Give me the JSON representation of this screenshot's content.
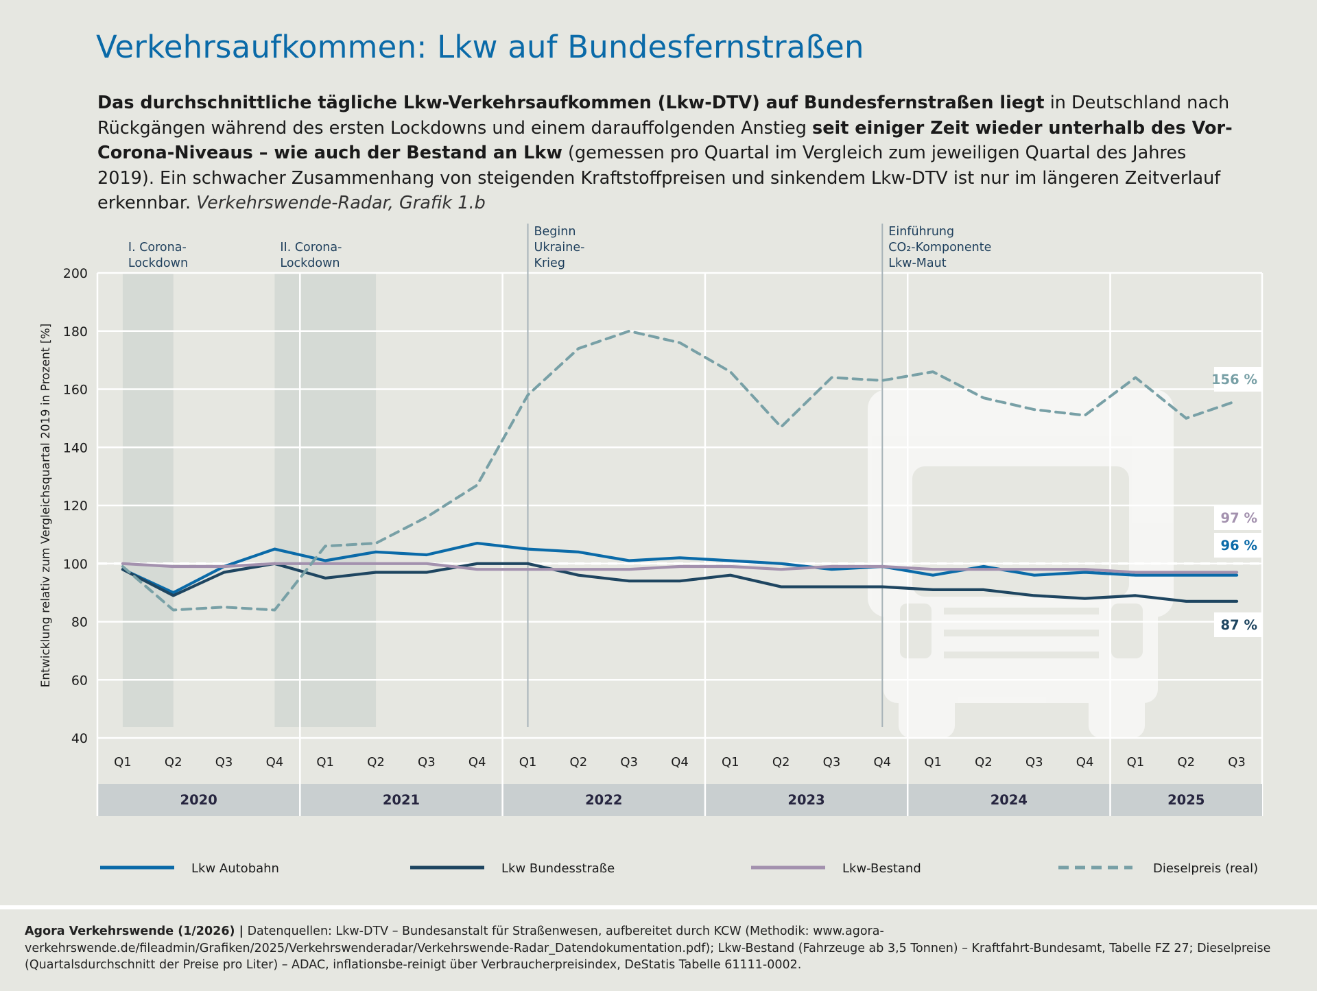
{
  "title": "Verkehrsaufkommen: Lkw auf Bundesfernstraßen",
  "intro": {
    "b1": "Das durchschnittliche tägliche Lkw-Verkehrsaufkommen (Lkw-DTV) auf Bundesfernstraßen liegt",
    "t1": " in Deutschland nach Rückgängen während des ersten Lockdowns und einem darauffolgenden Anstieg ",
    "b2": "seit einiger Zeit wieder unterhalb des Vor-Corona-Niveaus – wie auch der Bestand an Lkw",
    "t2": " (gemessen pro Quartal im Vergleich zum jeweiligen Quartal des Jahres 2019). Ein schwacher Zusammenhang von steigenden Kraftstoffpreisen und sinkendem Lkw-DTV ist nur im längeren Zeitverlauf erkennbar. ",
    "source": "Verkehrswende-Radar, Grafik 1.b"
  },
  "footer": {
    "org": "Agora Verkehrswende (1/2026) |",
    "text": " Datenquellen: Lkw-DTV – Bundesanstalt für Straßenwesen, aufbereitet durch KCW (Methodik: www.agora-verkehrswende.de/fileadmin/Grafiken/2025/Verkehrswenderadar/Verkehrswende-Radar_Datendokumentation.pdf); Lkw-Bestand (Fahrzeuge ab 3,5 Tonnen) – Kraftfahrt-Bundesamt, Tabelle FZ 27; Dieselpreise (Quartalsdurchschnitt der Preise pro Liter) – ADAC, inflationsbe-reinigt über Verbraucherpreisindex, DeStatis Tabelle 61111-0002."
  },
  "chart_data": {
    "type": "line",
    "ylabel": "Entwicklung relativ zum Vergleichsquartal 2019 in Prozent [%]",
    "ylim": [
      40,
      200
    ],
    "yticks": [
      40,
      60,
      80,
      100,
      120,
      140,
      160,
      180,
      200
    ],
    "reference_line": 100,
    "categories": [
      "Q1",
      "Q2",
      "Q3",
      "Q4",
      "Q1",
      "Q2",
      "Q3",
      "Q4",
      "Q1",
      "Q2",
      "Q3",
      "Q4",
      "Q1",
      "Q2",
      "Q3",
      "Q4",
      "Q1",
      "Q2",
      "Q3",
      "Q4",
      "Q1",
      "Q2",
      "Q3"
    ],
    "years": [
      {
        "label": "2020",
        "start": 0,
        "end": 3
      },
      {
        "label": "2021",
        "start": 4,
        "end": 7
      },
      {
        "label": "2022",
        "start": 8,
        "end": 11
      },
      {
        "label": "2023",
        "start": 12,
        "end": 15
      },
      {
        "label": "2024",
        "start": 16,
        "end": 19
      },
      {
        "label": "2025",
        "start": 20,
        "end": 22
      }
    ],
    "shaded_periods": [
      {
        "start": 0,
        "end": 1,
        "label": [
          "I. Corona-",
          "Lockdown"
        ]
      },
      {
        "start": 3,
        "end": 5,
        "label": [
          "II. Corona-",
          "Lockdown"
        ]
      }
    ],
    "events": [
      {
        "at": 8,
        "label": [
          "Beginn",
          "Ukraine-",
          "Krieg"
        ]
      },
      {
        "at": 15,
        "label": [
          "Einführung",
          "CO₂-Komponente",
          "Lkw-Maut"
        ]
      }
    ],
    "series": [
      {
        "name": "Lkw Autobahn",
        "color": "#0a6aa8",
        "dashed": false,
        "values": [
          98,
          90,
          99,
          105,
          101,
          104,
          103,
          107,
          105,
          104,
          101,
          102,
          101,
          100,
          98,
          99,
          96,
          99,
          96,
          97,
          96,
          96,
          96
        ],
        "end_label": "96 %"
      },
      {
        "name": "Lkw Bundesstraße",
        "color": "#1e4560",
        "dashed": false,
        "values": [
          98,
          89,
          97,
          100,
          95,
          97,
          97,
          100,
          100,
          96,
          94,
          94,
          96,
          92,
          92,
          92,
          91,
          91,
          89,
          88,
          89,
          87,
          87
        ],
        "end_label": "87 %"
      },
      {
        "name": "Lkw-Bestand",
        "color": "#a391ae",
        "dashed": false,
        "values": [
          100,
          99,
          99,
          100,
          100,
          100,
          100,
          98,
          98,
          98,
          98,
          99,
          99,
          98,
          99,
          99,
          98,
          98,
          98,
          98,
          97,
          97,
          97
        ],
        "end_label": "97 %"
      },
      {
        "name": "Dieselpreis (real)",
        "color": "#78a0a6",
        "dashed": true,
        "values": [
          99,
          84,
          85,
          84,
          106,
          107,
          116,
          127,
          158,
          174,
          180,
          176,
          166,
          147,
          164,
          163,
          166,
          157,
          153,
          151,
          164,
          150,
          156
        ],
        "end_label": "156 %"
      }
    ]
  }
}
